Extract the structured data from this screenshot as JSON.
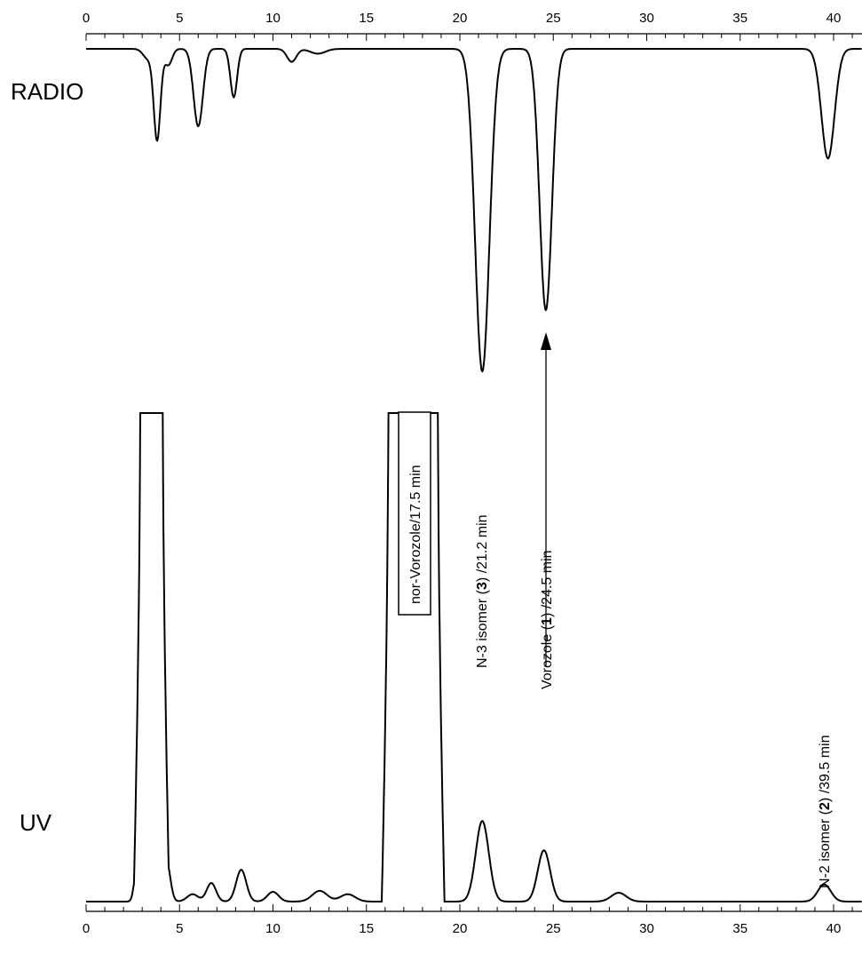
{
  "chart_data": [
    {
      "type": "line",
      "name": "RADIO",
      "label": "RADIO",
      "orientation": "inverted",
      "xlim": [
        0,
        41.5
      ],
      "xticks": [
        0,
        5,
        10,
        15,
        20,
        25,
        30,
        35,
        40
      ],
      "x_minor_step": 1,
      "ylim": [
        0,
        1
      ],
      "baseline": 0,
      "peaks": [
        {
          "x": 3.3,
          "height": 0.03,
          "width": 0.25
        },
        {
          "x": 3.8,
          "height": 0.28,
          "width": 0.18
        },
        {
          "x": 4.4,
          "height": 0.05,
          "width": 0.2
        },
        {
          "x": 6.0,
          "height": 0.24,
          "width": 0.25
        },
        {
          "x": 7.9,
          "height": 0.15,
          "width": 0.18
        },
        {
          "x": 11.0,
          "height": 0.04,
          "width": 0.25
        },
        {
          "x": 12.4,
          "height": 0.015,
          "width": 0.4
        },
        {
          "x": 21.2,
          "height": 1.0,
          "width": 0.38
        },
        {
          "x": 24.6,
          "height": 0.81,
          "width": 0.33
        },
        {
          "x": 39.7,
          "height": 0.34,
          "width": 0.35
        }
      ]
    },
    {
      "type": "line",
      "name": "UV",
      "label": "UV",
      "xlim": [
        0,
        41.5
      ],
      "ylim": [
        0,
        1
      ],
      "baseline": 0,
      "peaks": [
        {
          "x": 2.7,
          "height": 0.062,
          "width": 0.14
        },
        {
          "x": 3.5,
          "height": 1.0,
          "width": 0.32,
          "clipped": true
        },
        {
          "x": 4.3,
          "height": 0.083,
          "width": 0.2
        },
        {
          "x": 5.7,
          "height": 0.015,
          "width": 0.3
        },
        {
          "x": 6.7,
          "height": 0.038,
          "width": 0.25
        },
        {
          "x": 8.3,
          "height": 0.065,
          "width": 0.27
        },
        {
          "x": 10.0,
          "height": 0.02,
          "width": 0.3
        },
        {
          "x": 12.5,
          "height": 0.022,
          "width": 0.4
        },
        {
          "x": 14.0,
          "height": 0.015,
          "width": 0.4
        },
        {
          "x": 17.5,
          "height": 1.0,
          "width": 0.7,
          "clipped": true
        },
        {
          "x": 21.2,
          "height": 0.165,
          "width": 0.35
        },
        {
          "x": 24.5,
          "height": 0.105,
          "width": 0.33
        },
        {
          "x": 28.5,
          "height": 0.018,
          "width": 0.4
        },
        {
          "x": 39.5,
          "height": 0.035,
          "width": 0.35
        }
      ]
    }
  ],
  "annotations": {
    "nor_vorozole": "nor-Vorozole/17.5 min",
    "n3_prefix": "N-3 isomer (",
    "n3_bold": "3",
    "n3_suffix": ") /21.2 min",
    "vorozole_prefix": "Vorozole (",
    "vorozole_bold": "1",
    "vorozole_suffix": ") /24.5 min",
    "n2_prefix": "N-2 isomer (",
    "n2_bold": "2",
    "n2_suffix": ") /39.5 min"
  },
  "colors": {
    "trace": "#000000",
    "background": "#ffffff"
  }
}
